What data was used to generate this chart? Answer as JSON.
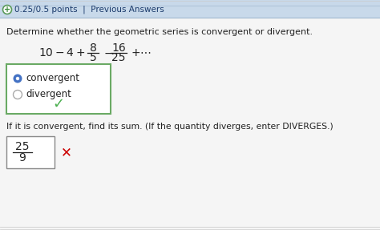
{
  "header_text": "0.25/0.5 points  |  Previous Answers",
  "header_plus": "+",
  "header_bg": "#c8d9ea",
  "body_bg": "#f5f5f5",
  "question1": "Determine whether the geometric series is convergent or divergent.",
  "series_prefix": "10 − 4 + ",
  "frac1_num": "8",
  "frac1_den": "5",
  "frac2_num": "16",
  "frac2_den": "25",
  "dots": "+ · · ·",
  "option1": "convergent",
  "option2": "divergent",
  "option1_dot_color": "#4472C4",
  "option_box_border": "#6aaa64",
  "checkmark_color": "#4CAF50",
  "question2": "If it is convergent, find its sum. (If the quantity diverges, enter DIVERGES.)",
  "answer_num": "25",
  "answer_den": "9",
  "answer_box_border": "#888888",
  "wrong_mark_color": "#cc0000",
  "text_color": "#222222",
  "blue_text_color": "#1a3a6b",
  "header_border_color": "#a0b8d0"
}
